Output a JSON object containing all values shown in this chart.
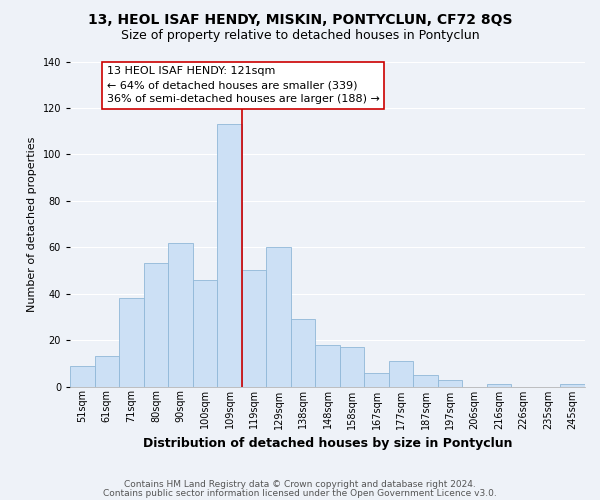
{
  "title": "13, HEOL ISAF HENDY, MISKIN, PONTYCLUN, CF72 8QS",
  "subtitle": "Size of property relative to detached houses in Pontyclun",
  "xlabel": "Distribution of detached houses by size in Pontyclun",
  "ylabel": "Number of detached properties",
  "bar_labels": [
    "51sqm",
    "61sqm",
    "71sqm",
    "80sqm",
    "90sqm",
    "100sqm",
    "109sqm",
    "119sqm",
    "129sqm",
    "138sqm",
    "148sqm",
    "158sqm",
    "167sqm",
    "177sqm",
    "187sqm",
    "197sqm",
    "206sqm",
    "216sqm",
    "226sqm",
    "235sqm",
    "245sqm"
  ],
  "bar_heights": [
    9,
    13,
    38,
    53,
    62,
    46,
    113,
    50,
    60,
    29,
    18,
    17,
    6,
    11,
    5,
    3,
    0,
    1,
    0,
    0,
    1
  ],
  "bar_color": "#cce0f5",
  "bar_edge_color": "#90b8d8",
  "vline_color": "#cc0000",
  "annotation_title": "13 HEOL ISAF HENDY: 121sqm",
  "annotation_line1": "← 64% of detached houses are smaller (339)",
  "annotation_line2": "36% of semi-detached houses are larger (188) →",
  "annotation_box_color": "#ffffff",
  "annotation_box_edge": "#cc0000",
  "ylim": [
    0,
    140
  ],
  "yticks": [
    0,
    20,
    40,
    60,
    80,
    100,
    120,
    140
  ],
  "footer1": "Contains HM Land Registry data © Crown copyright and database right 2024.",
  "footer2": "Contains public sector information licensed under the Open Government Licence v3.0.",
  "background_color": "#eef2f8",
  "title_fontsize": 10,
  "subtitle_fontsize": 9,
  "xlabel_fontsize": 9,
  "ylabel_fontsize": 8,
  "tick_fontsize": 7,
  "annotation_fontsize": 8,
  "footer_fontsize": 6.5
}
